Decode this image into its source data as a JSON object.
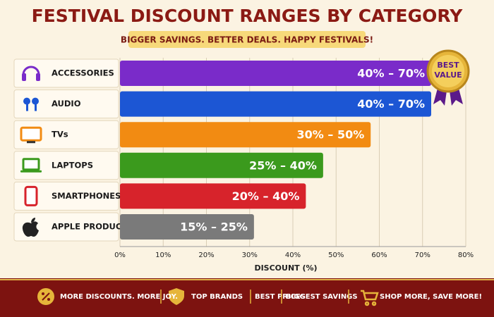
{
  "chart_data": {
    "type": "bar",
    "orientation": "horizontal",
    "title": "FESTIVAL DISCOUNT RANGES BY CATEGORY",
    "subtitle": "BIGGER SAVINGS. BETTER DEALS. HAPPY FESTIVALS!",
    "xlabel": "DISCOUNT (%)",
    "categories": [
      "ACCESSORIES",
      "AUDIO",
      "TVs",
      "LAPTOPS",
      "SMARTPHONES",
      "APPLE PRODUCTS"
    ],
    "values": [
      72,
      72,
      58,
      47,
      43,
      31
    ],
    "value_labels": [
      "40% – 70%",
      "40% – 70%",
      "30% – 50%",
      "25% – 40%",
      "20% – 40%",
      "15% – 25%"
    ],
    "colors": [
      "#7a2bc9",
      "#1c56d4",
      "#f28b12",
      "#3b9a1d",
      "#d7232b",
      "#7a7a7a"
    ],
    "xlim": [
      0,
      80
    ],
    "xticks": [
      {
        "value": 0,
        "label": "0%"
      },
      {
        "value": 10,
        "label": "10%"
      },
      {
        "value": 20,
        "label": "20%"
      },
      {
        "value": 30,
        "label": "30%"
      },
      {
        "value": 40,
        "label": "40%"
      },
      {
        "value": 50,
        "label": "50%"
      },
      {
        "value": 60,
        "label": "60%"
      },
      {
        "value": 70,
        "label": "70%"
      },
      {
        "value": 80,
        "label": "80%"
      }
    ],
    "grid": true,
    "badge": [
      "BEST",
      "VALUE"
    ]
  },
  "footer": {
    "items": [
      "MORE DISCOUNTS. MORE JOY.",
      "TOP BRANDS",
      "BEST PRICES",
      "BIGGEST SAVINGS",
      "SHOP MORE, SAVE MORE!"
    ]
  }
}
